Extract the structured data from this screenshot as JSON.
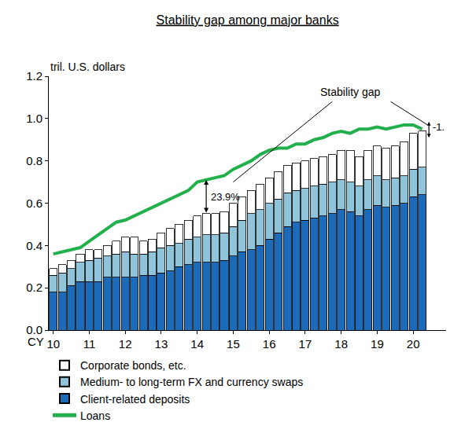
{
  "chart_data": {
    "type": "bar",
    "title": "Stability gap among major banks",
    "y_label": "tril. U.S. dollars",
    "x_label": "CY",
    "stacked": true,
    "grid": false,
    "legend": "bottom",
    "annotations": [
      "Stability gap",
      "23.9%",
      "-1."
    ],
    "categories": [
      "10",
      null,
      null,
      null,
      "11",
      null,
      null,
      null,
      "12",
      null,
      null,
      null,
      "13",
      null,
      null,
      null,
      "14",
      null,
      null,
      null,
      "15",
      null,
      null,
      null,
      "16",
      null,
      null,
      null,
      "17",
      null,
      null,
      null,
      "18",
      null,
      null,
      null,
      "19",
      null,
      null,
      null,
      "20",
      null
    ],
    "ylim": [
      0,
      1.2
    ],
    "yticks": [
      {
        "value": 0,
        "label": "0.0"
      },
      {
        "value": 0.2,
        "label": "0.2"
      },
      {
        "value": 0.4,
        "label": "0.4"
      },
      {
        "value": 0.6,
        "label": "0.6"
      },
      {
        "value": 0.8,
        "label": "0.8"
      },
      {
        "value": 1.0,
        "label": "1.0"
      },
      {
        "value": 1.2,
        "label": "1.2"
      }
    ],
    "series": [
      {
        "name": "Client-related deposits",
        "type": "bar",
        "color": "#1c6bbb",
        "values": [
          0.18,
          0.18,
          0.21,
          0.23,
          0.23,
          0.23,
          0.25,
          0.25,
          0.25,
          0.25,
          0.26,
          0.26,
          0.27,
          0.28,
          0.3,
          0.31,
          0.32,
          0.32,
          0.32,
          0.33,
          0.35,
          0.37,
          0.38,
          0.4,
          0.43,
          0.46,
          0.49,
          0.51,
          0.52,
          0.53,
          0.54,
          0.55,
          0.57,
          0.56,
          0.54,
          0.57,
          0.59,
          0.58,
          0.59,
          0.6,
          0.63,
          0.64
        ]
      },
      {
        "name": "Medium- to long-term FX and currency swaps",
        "type": "bar",
        "color": "#90c4da",
        "values": [
          0.08,
          0.09,
          0.08,
          0.09,
          0.1,
          0.11,
          0.1,
          0.11,
          0.12,
          0.11,
          0.1,
          0.11,
          0.12,
          0.12,
          0.11,
          0.12,
          0.12,
          0.13,
          0.13,
          0.13,
          0.14,
          0.15,
          0.17,
          0.17,
          0.17,
          0.16,
          0.16,
          0.15,
          0.15,
          0.15,
          0.15,
          0.15,
          0.14,
          0.14,
          0.14,
          0.14,
          0.14,
          0.13,
          0.13,
          0.13,
          0.13,
          0.13
        ]
      },
      {
        "name": "Corporate bonds, etc.",
        "type": "bar",
        "color": "#ffffff",
        "values": [
          0.03,
          0.04,
          0.04,
          0.04,
          0.05,
          0.04,
          0.05,
          0.06,
          0.07,
          0.08,
          0.06,
          0.06,
          0.07,
          0.08,
          0.09,
          0.09,
          0.1,
          0.1,
          0.1,
          0.1,
          0.11,
          0.11,
          0.11,
          0.12,
          0.12,
          0.13,
          0.13,
          0.13,
          0.13,
          0.13,
          0.13,
          0.13,
          0.14,
          0.15,
          0.14,
          0.14,
          0.14,
          0.15,
          0.15,
          0.16,
          0.17,
          0.17
        ]
      },
      {
        "name": "Loans",
        "type": "line",
        "color": "#21b04b",
        "values": [
          0.36,
          0.37,
          0.38,
          0.39,
          0.42,
          0.45,
          0.48,
          0.51,
          0.52,
          0.54,
          0.56,
          0.58,
          0.6,
          0.62,
          0.64,
          0.66,
          0.7,
          0.71,
          0.72,
          0.73,
          0.76,
          0.78,
          0.8,
          0.83,
          0.85,
          0.86,
          0.86,
          0.88,
          0.88,
          0.9,
          0.91,
          0.93,
          0.94,
          0.93,
          0.95,
          0.95,
          0.96,
          0.95,
          0.96,
          0.97,
          0.97,
          0.95
        ]
      }
    ]
  }
}
